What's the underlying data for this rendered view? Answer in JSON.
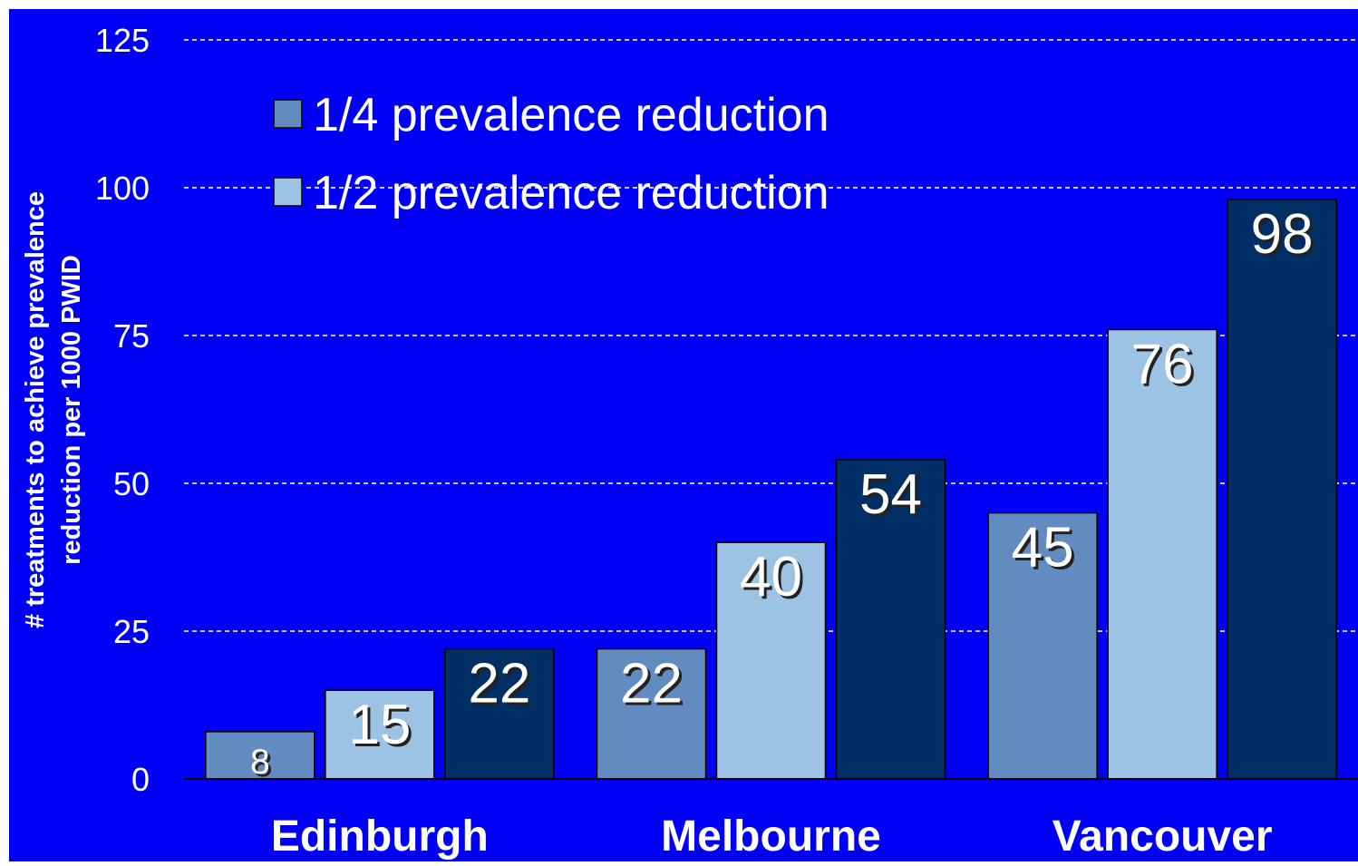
{
  "chart_data": {
    "type": "bar",
    "y_label_lines": [
      "# treatments to achieve prevalence",
      "reduction per 1000 PWID"
    ],
    "categories": [
      "Edinburgh",
      "Melbourne",
      "Vancouver"
    ],
    "series": [
      {
        "name": "1/4 prevalence reduction",
        "color": "#628bbf",
        "values": [
          8,
          22,
          45
        ]
      },
      {
        "name": "1/2 prevalence reduction",
        "color": "#9cc2e4",
        "values": [
          15,
          40,
          76
        ]
      },
      {
        "color": "#002f66",
        "values": [
          22,
          54,
          98
        ]
      }
    ],
    "ylim": [
      0,
      125
    ],
    "yticks": [
      0,
      25,
      50,
      75,
      100,
      125
    ],
    "grid": true,
    "legend": "top-left",
    "background": "#0000f4"
  }
}
